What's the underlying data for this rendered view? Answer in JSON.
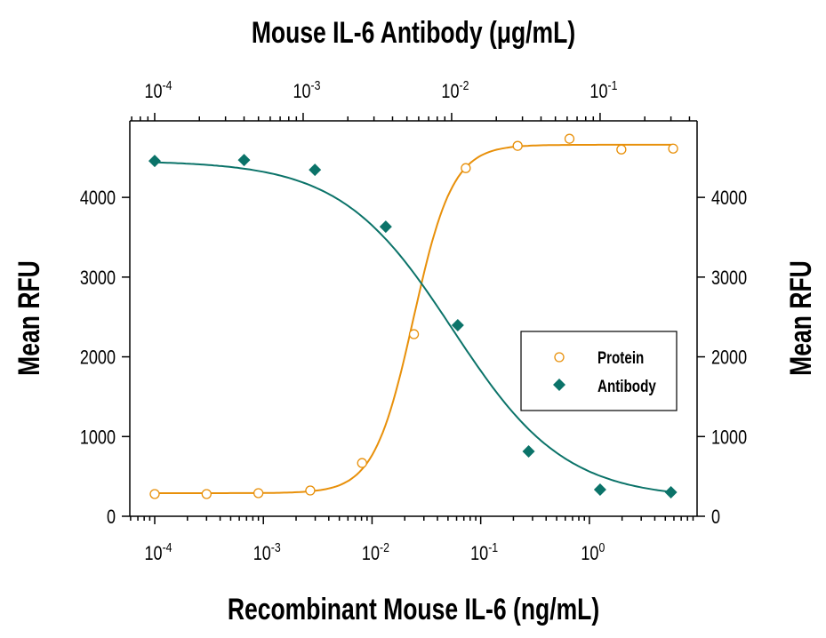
{
  "chart_data": {
    "type": "scatter",
    "title": "Mouse IL-6 Antibody (μg/mL)",
    "xlabel": "Recombinant Mouse IL-6 (ng/mL)",
    "x2label": "Mouse IL-6 Antibody (μg/mL)",
    "ylabel": "Mean RFU",
    "y2label": "Mean RFU",
    "xscale": "log",
    "x2scale": "log",
    "xlim": [
      5.9e-05,
      9.8
    ],
    "x2lim": [
      6.8e-05,
      0.45
    ],
    "ylim": [
      0,
      4960
    ],
    "xticks": [
      {
        "exp": "-4",
        "value": 0.0001
      },
      {
        "exp": "-3",
        "value": 0.001
      },
      {
        "exp": "-2",
        "value": 0.01
      },
      {
        "exp": "-1",
        "value": 0.1
      },
      {
        "exp": "0",
        "value": 1
      }
    ],
    "x2ticks": [
      {
        "exp": "-4",
        "value": 0.0001
      },
      {
        "exp": "-3",
        "value": 0.001
      },
      {
        "exp": "-2",
        "value": 0.01
      },
      {
        "exp": "-1",
        "value": 0.1
      }
    ],
    "yticks": [
      "0",
      "1000",
      "2000",
      "3000",
      "4000"
    ],
    "grid": false,
    "legend_placement": "center-right",
    "series": [
      {
        "name": "Protein",
        "axis": "bottom",
        "marker": "open-circle",
        "color": "#E8900A",
        "x": [
          0.0001,
          0.0003,
          0.0009,
          0.0027,
          0.0081,
          0.0243,
          0.0729,
          0.2187,
          0.656,
          1.97,
          5.9
        ],
        "y": [
          279,
          279,
          290,
          323,
          668,
          2284,
          4367,
          4646,
          4735,
          4601,
          4612
        ],
        "fit": {
          "bottom": 290,
          "top": 4660,
          "ec50": 0.024,
          "hill": 2.4
        }
      },
      {
        "name": "Antibody",
        "axis": "top",
        "marker": "filled-diamond",
        "color": "#0B7369",
        "x": [
          0.0001,
          0.0004,
          0.0012,
          0.0036,
          0.011,
          0.033,
          0.1,
          0.3
        ],
        "y": [
          4457,
          4468,
          4345,
          3632,
          2396,
          813,
          334,
          301
        ],
        "fit": {
          "bottom": 220,
          "top": 4460,
          "ec50": 0.0102,
          "hill": -1.15
        }
      }
    ]
  }
}
